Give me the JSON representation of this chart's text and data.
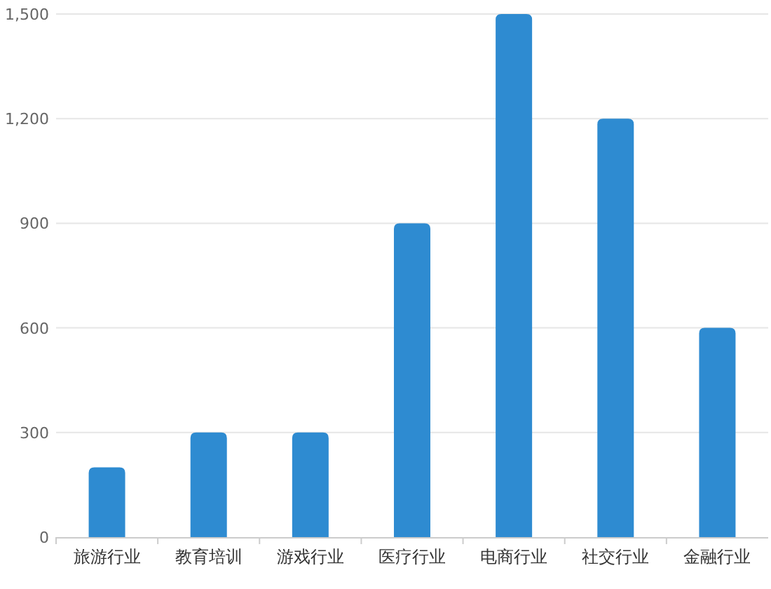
{
  "chart_data": {
    "type": "bar",
    "categories": [
      "旅游行业",
      "教育培训",
      "游戏行业",
      "医疗行业",
      "电商行业",
      "社交行业",
      "金融行业"
    ],
    "values": [
      200,
      300,
      300,
      900,
      1500,
      1200,
      600
    ],
    "color": "#2e8bd1",
    "ylim": [
      0,
      1500
    ],
    "yticks": [
      {
        "value": 0,
        "label": "0"
      },
      {
        "value": 300,
        "label": "300"
      },
      {
        "value": 600,
        "label": "600"
      },
      {
        "value": 900,
        "label": "900"
      },
      {
        "value": 1200,
        "label": "1,200"
      },
      {
        "value": 1500,
        "label": "1,500"
      }
    ],
    "grid": "y"
  }
}
